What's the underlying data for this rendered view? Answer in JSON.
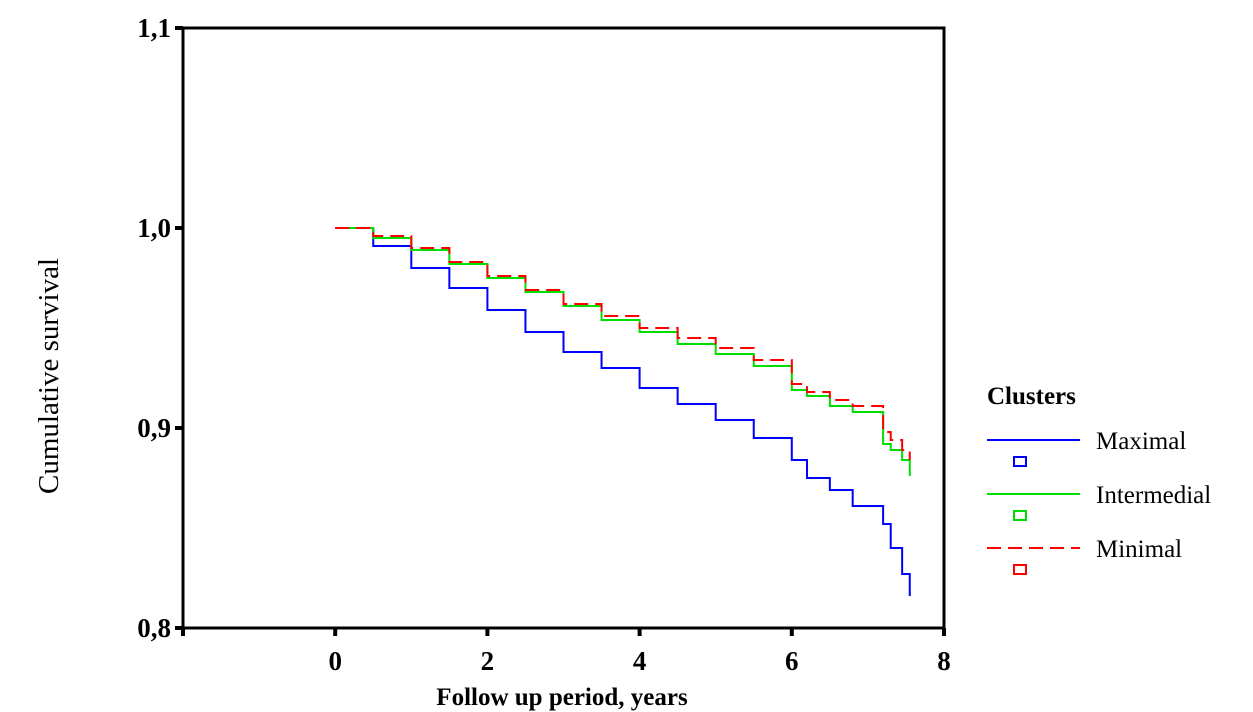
{
  "chart_data": {
    "type": "line",
    "title": "",
    "xlabel": "Follow up period, years",
    "ylabel": "Cumulative survival",
    "xlim": [
      -2,
      8
    ],
    "ylim": [
      0.8,
      1.1
    ],
    "x_ticks": [
      0,
      2,
      4,
      6,
      8
    ],
    "x_tick_labels": [
      "0",
      "2",
      "4",
      "6",
      "8"
    ],
    "y_ticks": [
      0.8,
      0.9,
      1.0,
      1.1
    ],
    "y_tick_labels": [
      "0,8",
      "0,9",
      "1,0",
      "1,1"
    ],
    "grid": false,
    "legend": {
      "title": "Clusters",
      "position": "right",
      "entries": [
        "Maximal",
        "Intermedial",
        "Minimal"
      ]
    },
    "series": [
      {
        "name": "Maximal",
        "color": "#0000ff",
        "dash": "solid",
        "x": [
          0,
          0.5,
          1,
          1.5,
          2,
          2.5,
          3,
          3.5,
          4,
          4.5,
          5,
          5.5,
          6,
          6.2,
          6.5,
          6.8,
          7.2,
          7.3,
          7.45,
          7.55
        ],
        "y": [
          1.0,
          0.991,
          0.98,
          0.97,
          0.959,
          0.948,
          0.938,
          0.93,
          0.92,
          0.912,
          0.904,
          0.895,
          0.884,
          0.875,
          0.869,
          0.861,
          0.852,
          0.84,
          0.827,
          0.816
        ]
      },
      {
        "name": "Intermedial",
        "color": "#00dd00",
        "dash": "solid",
        "x": [
          0,
          0.5,
          1,
          1.5,
          2,
          2.5,
          3,
          3.5,
          4,
          4.5,
          5,
          5.5,
          6,
          6.2,
          6.5,
          6.8,
          7.2,
          7.3,
          7.45,
          7.55
        ],
        "y": [
          1.0,
          0.995,
          0.989,
          0.982,
          0.975,
          0.968,
          0.961,
          0.954,
          0.948,
          0.942,
          0.937,
          0.931,
          0.919,
          0.916,
          0.911,
          0.908,
          0.892,
          0.889,
          0.884,
          0.876
        ]
      },
      {
        "name": "Minimal",
        "color": "#ff0000",
        "dash": "dashed",
        "x": [
          0,
          0.5,
          1,
          1.5,
          2,
          2.5,
          3,
          3.5,
          4,
          4.5,
          5,
          5.5,
          6,
          6.2,
          6.5,
          6.8,
          7.2,
          7.3,
          7.45,
          7.55
        ],
        "y": [
          1.0,
          0.996,
          0.99,
          0.983,
          0.976,
          0.969,
          0.962,
          0.956,
          0.95,
          0.945,
          0.94,
          0.934,
          0.922,
          0.918,
          0.914,
          0.911,
          0.898,
          0.894,
          0.889,
          0.884
        ]
      }
    ]
  }
}
